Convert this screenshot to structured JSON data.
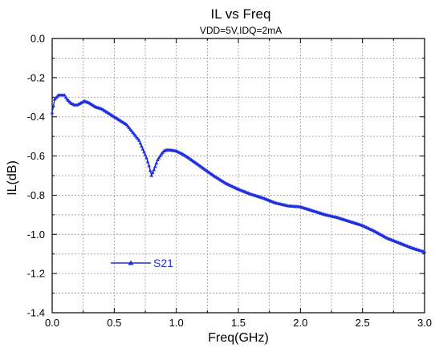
{
  "chart_data": {
    "type": "line",
    "title": "IL vs Freq",
    "subtitle": "VDD=5V,IDQ=2mA",
    "xlabel": "Freq(GHz)",
    "ylabel": "IL(dB)",
    "xlim": [
      0.0,
      3.0
    ],
    "ylim": [
      -1.4,
      0.0
    ],
    "xticks": [
      "0.0",
      "0.5",
      "1.0",
      "1.5",
      "2.0",
      "2.5",
      "3.0"
    ],
    "yticks": [
      "0.0",
      "-0.2",
      "-0.4",
      "-0.6",
      "-0.8",
      "-1.0",
      "-1.2",
      "-1.4"
    ],
    "grid": true,
    "legend_position": "bottom-left",
    "colors": {
      "series": "#1f2fdc",
      "grid": "#9a9a9a",
      "axis": "#000000"
    },
    "series": [
      {
        "name": "S21",
        "marker": "triangle",
        "x": [
          0.0,
          0.02,
          0.05,
          0.08,
          0.1,
          0.12,
          0.15,
          0.18,
          0.2,
          0.23,
          0.26,
          0.3,
          0.35,
          0.4,
          0.45,
          0.5,
          0.55,
          0.6,
          0.65,
          0.7,
          0.72,
          0.74,
          0.76,
          0.78,
          0.8,
          0.82,
          0.85,
          0.88,
          0.9,
          0.92,
          0.95,
          1.0,
          1.05,
          1.1,
          1.2,
          1.3,
          1.4,
          1.5,
          1.6,
          1.7,
          1.8,
          1.9,
          2.0,
          2.1,
          2.2,
          2.3,
          2.4,
          2.5,
          2.6,
          2.7,
          2.8,
          2.9,
          3.0
        ],
        "y": [
          -0.38,
          -0.31,
          -0.29,
          -0.29,
          -0.29,
          -0.31,
          -0.33,
          -0.34,
          -0.34,
          -0.33,
          -0.32,
          -0.33,
          -0.35,
          -0.36,
          -0.38,
          -0.4,
          -0.42,
          -0.44,
          -0.48,
          -0.52,
          -0.55,
          -0.58,
          -0.61,
          -0.65,
          -0.7,
          -0.67,
          -0.62,
          -0.59,
          -0.575,
          -0.57,
          -0.57,
          -0.575,
          -0.59,
          -0.61,
          -0.655,
          -0.7,
          -0.74,
          -0.77,
          -0.795,
          -0.815,
          -0.84,
          -0.855,
          -0.86,
          -0.88,
          -0.9,
          -0.915,
          -0.935,
          -0.955,
          -0.985,
          -1.02,
          -1.045,
          -1.07,
          -1.09
        ]
      }
    ]
  }
}
